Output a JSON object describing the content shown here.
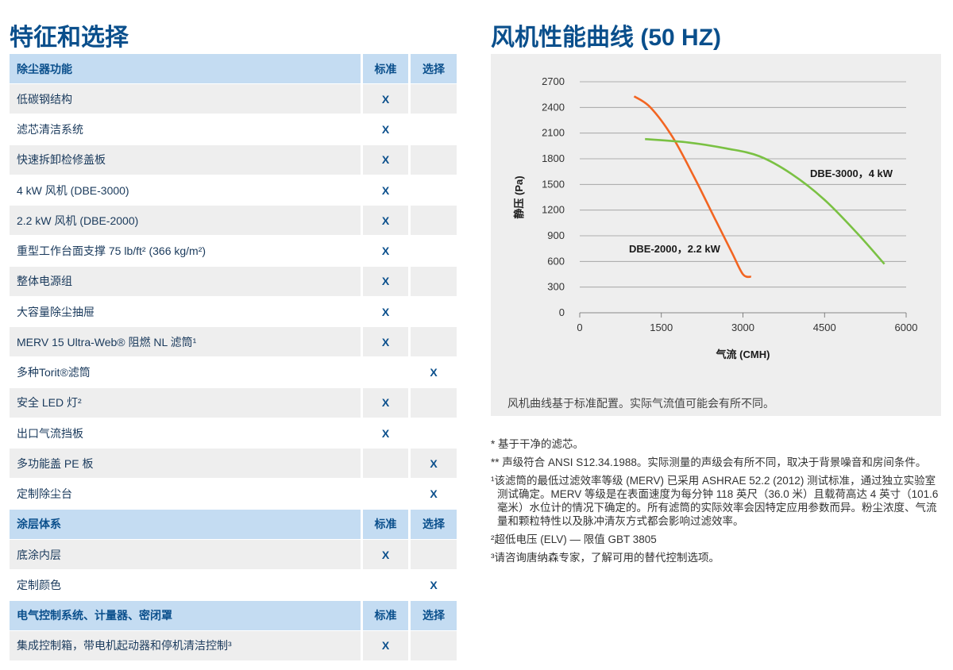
{
  "left_title": "特征和选择",
  "right_title": "风机性能曲线 (50 HZ)",
  "table": {
    "sections": [
      {
        "header": {
          "name": "除尘器功能",
          "std": "标准",
          "opt": "选择"
        },
        "rows": [
          {
            "name": "低碳钢结构",
            "std": "X",
            "opt": ""
          },
          {
            "name": "滤芯清洁系统",
            "std": "X",
            "opt": ""
          },
          {
            "name": "快速拆卸检修盖板",
            "std": "X",
            "opt": ""
          },
          {
            "name": "4 kW 风机 (DBE-3000)",
            "std": "X",
            "opt": ""
          },
          {
            "name": "2.2 kW 风机 (DBE-2000)",
            "std": "X",
            "opt": ""
          },
          {
            "name": "重型工作台面支撑 75 lb/ft² (366 kg/m²)",
            "std": "X",
            "opt": ""
          },
          {
            "name": "整体电源组",
            "std": "X",
            "opt": ""
          },
          {
            "name": "大容量除尘抽屉",
            "std": "X",
            "opt": ""
          },
          {
            "name": "MERV 15 Ultra-Web® 阻燃 NL 滤筒¹",
            "std": "X",
            "opt": ""
          },
          {
            "name": "多种Torit®滤筒",
            "std": "",
            "opt": "X"
          },
          {
            "name": "安全 LED 灯²",
            "std": "X",
            "opt": ""
          },
          {
            "name": "出口气流挡板",
            "std": "X",
            "opt": ""
          },
          {
            "name": "多功能盖 PE 板",
            "std": "",
            "opt": "X"
          },
          {
            "name": "定制除尘台",
            "std": "",
            "opt": "X"
          }
        ]
      },
      {
        "header": {
          "name": "涂层体系",
          "std": "标准",
          "opt": "选择"
        },
        "rows": [
          {
            "name": "底涂内层",
            "std": "X",
            "opt": ""
          },
          {
            "name": "定制颜色",
            "std": "",
            "opt": "X"
          }
        ]
      },
      {
        "header": {
          "name": "电气控制系统、计量器、密闭罩",
          "std": "标准",
          "opt": "选择"
        },
        "rows": [
          {
            "name": "集成控制箱，带电机起动器和停机清洁控制³",
            "std": "X",
            "opt": ""
          }
        ]
      }
    ]
  },
  "chart_data": {
    "type": "line",
    "xlabel": "气流 (CMH)",
    "ylabel": "静压 (Pa)",
    "xlim": [
      0,
      6000
    ],
    "ylim": [
      0,
      2700
    ],
    "x_ticks": [
      "0",
      "1500",
      "3000",
      "4500",
      "6000"
    ],
    "y_ticks": [
      "0",
      "300",
      "600",
      "900",
      "1200",
      "1500",
      "1800",
      "2100",
      "2400",
      "2700"
    ],
    "grid": "horizontal",
    "series": [
      {
        "name": "DBE-2000，2.2 kW",
        "color": "#f26522",
        "x": [
          1000,
          1300,
          1700,
          2100,
          2500,
          2800,
          3000,
          3150
        ],
        "y": [
          2530,
          2400,
          2060,
          1590,
          1080,
          700,
          450,
          420
        ]
      },
      {
        "name": "DBE-3000，4 kW",
        "color": "#7ac143",
        "x": [
          1200,
          2000,
          2700,
          3300,
          3900,
          4500,
          5100,
          5600
        ],
        "y": [
          2030,
          1990,
          1920,
          1830,
          1620,
          1320,
          930,
          570
        ]
      }
    ],
    "note": "风机曲线基于标准配置。实际气流值可能会有所不同。"
  },
  "footnotes": [
    "* 基于干净的滤芯。",
    "** 声级符合 ANSI S12.34.1988。实际测量的声级会有所不同，取决于背景噪音和房间条件。",
    "¹该滤筒的最低过滤效率等级 (MERV) 已采用 ASHRAE 52.2 (2012) 测试标准，通过独立实验室测试确定。MERV 等级是在表面速度为每分钟 118 英尺（36.0 米）且载荷高达 4 英寸（101.6 毫米）水位计的情况下确定的。所有滤筒的实际效率会因特定应用参数而异。粉尘浓度、气流量和颗粒特性以及脉冲清灰方式都会影响过滤效率。",
    "²超低电压 (ELV) — 限值 GBT 3805",
    "³请咨询唐纳森专家，了解可用的替代控制选项。"
  ]
}
